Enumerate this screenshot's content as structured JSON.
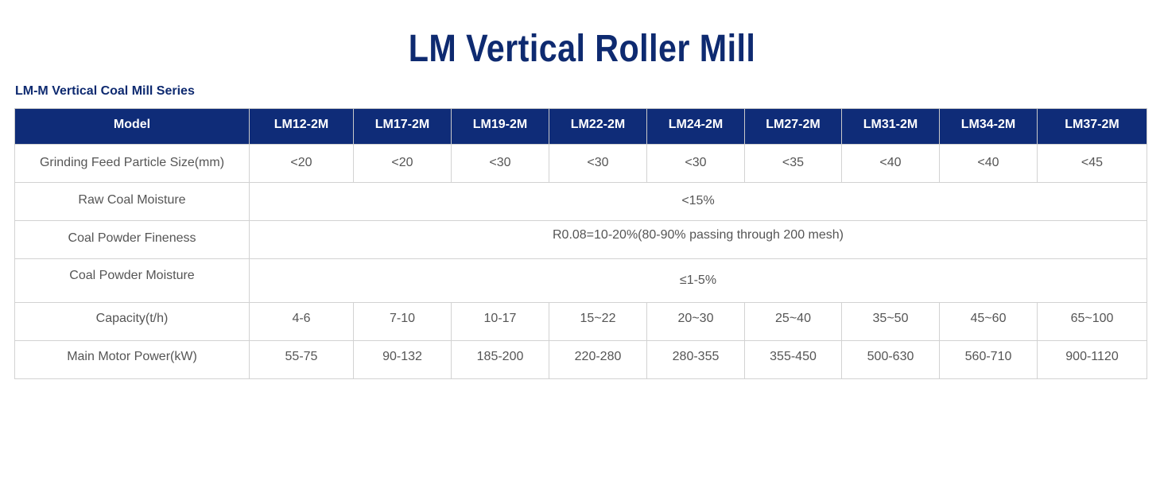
{
  "header": {
    "title": "LM Vertical Roller Mill",
    "series_title": "LM-M Vertical Coal Mill Series"
  },
  "table": {
    "model_label": "Model",
    "models": [
      "LM12-2M",
      "LM17-2M",
      "LM19-2M",
      "LM22-2M",
      "LM24-2M",
      "LM27-2M",
      "LM31-2M",
      "LM34-2M",
      "LM37-2M"
    ],
    "rows": {
      "feed_size": {
        "label": "Grinding Feed Particle Size(mm)",
        "values": [
          "<20",
          "<20",
          "<30",
          "<30",
          "<30",
          "<35",
          "<40",
          "<40",
          "<45"
        ]
      },
      "raw_moisture": {
        "label": "Raw Coal Moisture",
        "value": "<15%"
      },
      "fineness": {
        "label": "Coal Powder Fineness",
        "value": "R0.08=10-20%(80-90% passing through 200 mesh)"
      },
      "powder_moisture": {
        "label": "Coal Powder Moisture",
        "value": "≤1-5%"
      },
      "capacity": {
        "label": "Capacity(t/h)",
        "values": [
          "4-6",
          "7-10",
          "10-17",
          "15~22",
          "20~30",
          "25~40",
          "35~50",
          "45~60",
          "65~100"
        ]
      },
      "motor_power": {
        "label": "Main Motor Power(kW)",
        "values": [
          "55-75",
          "90-132",
          "185-200",
          "220-280",
          "280-355",
          "355-450",
          "500-630",
          "560-710",
          "900-1120"
        ]
      }
    }
  }
}
